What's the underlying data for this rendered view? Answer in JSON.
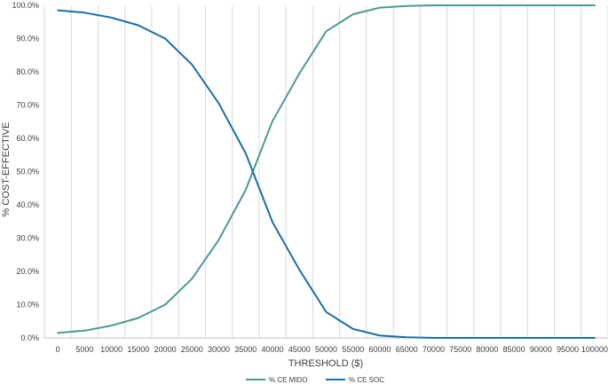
{
  "chart_data": {
    "type": "line",
    "title": "",
    "xlabel": "THRESHOLD ($)",
    "ylabel": "% COST-EFFECTIVE",
    "x": [
      0,
      5000,
      10000,
      15000,
      20000,
      25000,
      30000,
      35000,
      40000,
      45000,
      50000,
      55000,
      60000,
      65000,
      70000,
      75000,
      80000,
      85000,
      90000,
      95000,
      100000
    ],
    "x_tick_labels": [
      "0",
      "5000",
      "10000",
      "15000",
      "20000",
      "25000",
      "30000",
      "35000",
      "40000",
      "45000",
      "50000",
      "55000",
      "60000",
      "65000",
      "70000",
      "75000",
      "80000",
      "85000",
      "90000",
      "95000",
      "100000"
    ],
    "ylim": [
      0,
      100
    ],
    "y_ticks": [
      0,
      10,
      20,
      30,
      40,
      50,
      60,
      70,
      80,
      90,
      100
    ],
    "y_tick_labels": [
      "0.0%",
      "10.0%",
      "20.0%",
      "30.0%",
      "40.0%",
      "50.0%",
      "60.0%",
      "70.0%",
      "80.0%",
      "90.0%",
      "100.0%"
    ],
    "grid": "vertical",
    "legend_position": "bottom",
    "series": [
      {
        "name": "% CE MIDO",
        "color": "#4a9a96",
        "values": [
          1.5,
          2.2,
          3.7,
          6.0,
          10.0,
          17.8,
          29.5,
          44.5,
          65.2,
          79.5,
          92.2,
          97.3,
          99.3,
          99.8,
          100,
          100,
          100,
          100,
          100,
          100,
          100
        ]
      },
      {
        "name": "% CE SOC",
        "color": "#1a6faa",
        "values": [
          98.5,
          97.8,
          96.3,
          94.0,
          90.0,
          82.2,
          70.5,
          55.5,
          34.8,
          20.5,
          7.8,
          2.7,
          0.7,
          0.2,
          0,
          0,
          0,
          0,
          0,
          0,
          0
        ]
      }
    ]
  }
}
